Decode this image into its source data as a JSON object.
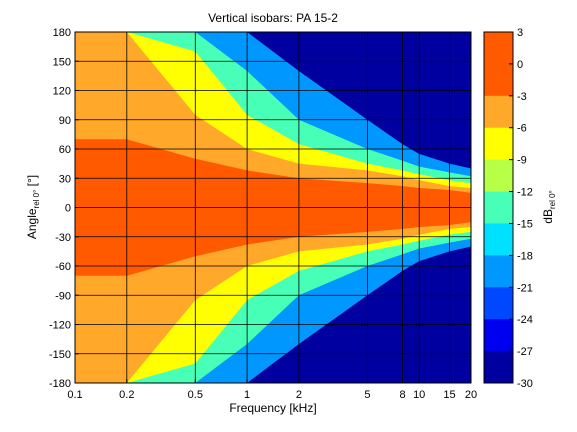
{
  "chart_data": {
    "type": "heatmap",
    "title": "Vertical isobars: PA 15-2",
    "xlabel": "Frequency [kHz]",
    "ylabel_main": "Angle",
    "ylabel_sub": "rel 0°",
    "ylabel_unit": " [°]",
    "x_scale": "log",
    "xlim": [
      0.1,
      20
    ],
    "ylim": [
      -180,
      180
    ],
    "x_ticks": [
      0.1,
      0.2,
      0.5,
      1,
      2,
      5,
      8,
      10,
      15,
      20
    ],
    "x_tick_labels": [
      "0.1",
      "0.2",
      "0.5",
      "1",
      "2",
      "5",
      "8",
      "10",
      "15",
      "20"
    ],
    "y_ticks": [
      -180,
      -150,
      -120,
      -90,
      -60,
      -30,
      0,
      30,
      60,
      90,
      120,
      150,
      180
    ],
    "y_tick_labels": [
      "-180",
      "-150",
      "-120",
      "-90",
      "-60",
      "-30",
      "0",
      "30",
      "60",
      "90",
      "120",
      "150",
      "180"
    ],
    "grid": true,
    "colorbar": {
      "label_main": "dB",
      "label_sub": "rel 0°",
      "limits": [
        -30,
        3
      ],
      "ticks": [
        3,
        0,
        -3,
        -6,
        -9,
        -12,
        -15,
        -18,
        -21,
        -24,
        -27,
        -30
      ],
      "tick_labels": [
        "3",
        "0",
        "-3",
        "-6",
        "-9",
        "-12",
        "-15",
        "-18",
        "-21",
        "-24",
        "-27",
        "-30"
      ],
      "levels": [
        {
          "range": [
            0,
            3
          ],
          "color": "#ff5a00"
        },
        {
          "range": [
            -3,
            0
          ],
          "color": "#ff5a00"
        },
        {
          "range": [
            -6,
            -3
          ],
          "color": "#ffa82a"
        },
        {
          "range": [
            -9,
            -6
          ],
          "color": "#ffff00"
        },
        {
          "range": [
            -12,
            -9
          ],
          "color": "#b8ff48"
        },
        {
          "range": [
            -15,
            -12
          ],
          "color": "#48ffb8"
        },
        {
          "range": [
            -18,
            -15
          ],
          "color": "#00e0ff"
        },
        {
          "range": [
            -21,
            -18
          ],
          "color": "#0098ff"
        },
        {
          "range": [
            -24,
            -21
          ],
          "color": "#0048ff"
        },
        {
          "range": [
            -27,
            -24
          ],
          "color": "#0000f0"
        },
        {
          "range": [
            -30,
            -27
          ],
          "color": "#0000a0"
        }
      ]
    },
    "beamwidth_contours": [
      {
        "level": -3,
        "freq": [
          0.1,
          0.2,
          0.5,
          1,
          2,
          5,
          8,
          10,
          15,
          20
        ],
        "angle": [
          70,
          70,
          50,
          38,
          30,
          25,
          22,
          20,
          18,
          15
        ]
      },
      {
        "level": -6,
        "freq": [
          0.1,
          0.2,
          0.5,
          1,
          2,
          5,
          8,
          10,
          15,
          20
        ],
        "angle": [
          180,
          180,
          95,
          60,
          45,
          38,
          32,
          28,
          22,
          20
        ]
      },
      {
        "level": -9,
        "freq": [
          0.1,
          0.2,
          0.5,
          1,
          2,
          5,
          8,
          10,
          15,
          20
        ],
        "angle": [
          180,
          180,
          160,
          95,
          65,
          45,
          38,
          34,
          28,
          25
        ]
      },
      {
        "level": -15,
        "freq": [
          0.1,
          0.2,
          0.5,
          1,
          2,
          5,
          8,
          10,
          15,
          20
        ],
        "angle": [
          180,
          180,
          180,
          140,
          90,
          60,
          48,
          42,
          36,
          32
        ]
      },
      {
        "level": -21,
        "freq": [
          0.1,
          0.2,
          0.5,
          1,
          2,
          5,
          8,
          10,
          15,
          20
        ],
        "angle": [
          180,
          180,
          180,
          180,
          140,
          90,
          65,
          55,
          45,
          40
        ]
      }
    ]
  }
}
